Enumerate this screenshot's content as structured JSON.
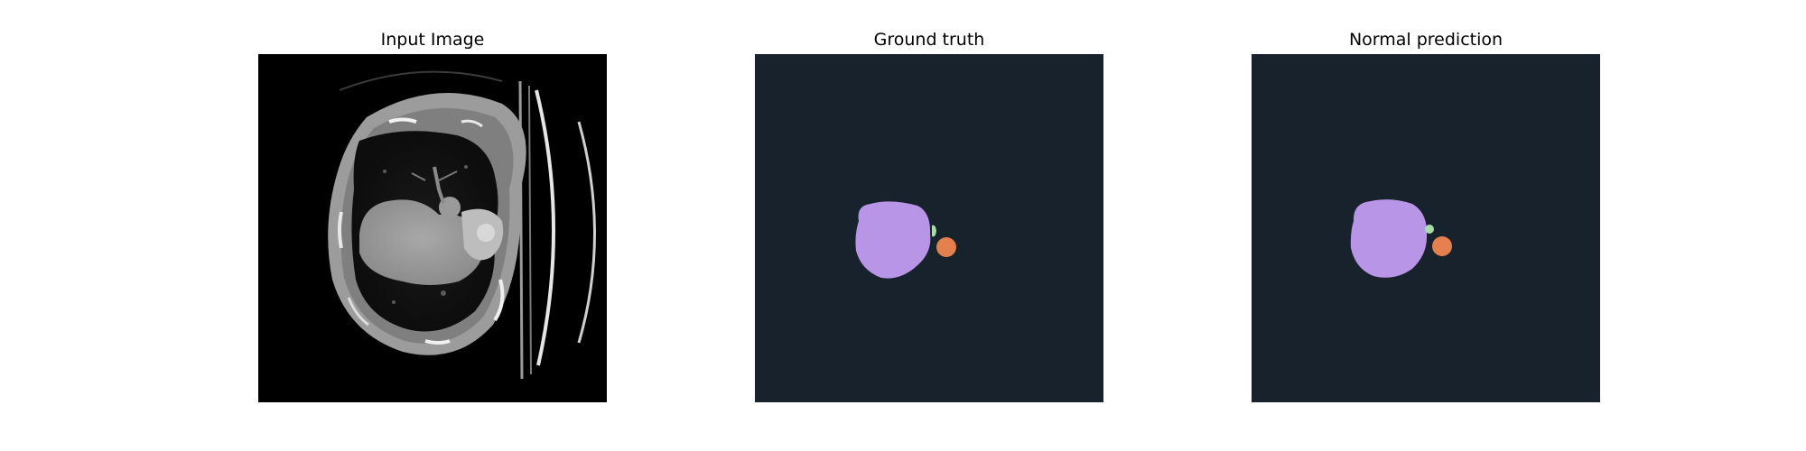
{
  "figure": {
    "panels": [
      {
        "title": "Input Image",
        "kind": "ct-scan"
      },
      {
        "title": "Ground truth",
        "kind": "segmentation-mask"
      },
      {
        "title": "Normal prediction",
        "kind": "segmentation-mask"
      }
    ],
    "colors": {
      "scan_background": "#000000",
      "mask_background": "#18222d",
      "segment_heart": "#b995e8",
      "segment_vessel": "#e3804d",
      "segment_small": "#a8dcaa"
    }
  }
}
